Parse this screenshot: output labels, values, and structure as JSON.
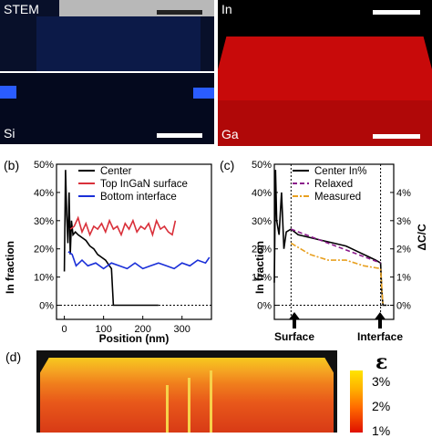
{
  "panels_top": {
    "stem": {
      "label": "STEM",
      "bg": "#0a1430"
    },
    "in": {
      "label": "In",
      "bg": "#000000"
    },
    "si": {
      "label": "Si",
      "bg": "#050a24"
    },
    "ga": {
      "label": "Ga",
      "bg": "#e01010"
    }
  },
  "panel_b": {
    "letter": "(b)",
    "ylabel": "In fraction",
    "xlabel": "Position (nm)",
    "legend": [
      "Center",
      "Top InGaN surface",
      "Bottom interface"
    ]
  },
  "panel_c": {
    "letter": "(c)",
    "ylabel_left": "In fraction",
    "ylabel_right": "ΔC/C",
    "legend": [
      "Center In%",
      "Relaxed",
      "Measured"
    ],
    "arrow_labels": [
      "Surface",
      "Interface"
    ]
  },
  "panel_d": {
    "letter": "(d)",
    "colorbar_symbol": "ε",
    "colorbar_ticks": [
      "3%",
      "2%",
      "1%"
    ]
  },
  "chart_data": [
    {
      "type": "line",
      "panel": "b",
      "xlabel": "Position (nm)",
      "ylabel": "In fraction",
      "xlim": [
        -20,
        375
      ],
      "ylim": [
        -5,
        50
      ],
      "xticks": [
        "0",
        "100",
        "200",
        "300"
      ],
      "yticks": [
        "0%",
        "10%",
        "20%",
        "30%",
        "40%",
        "50%"
      ],
      "colors": {
        "Center": "#000000",
        "Top InGaN surface": "#d9303a",
        "Bottom interface": "#1a2fd8"
      },
      "series": [
        {
          "name": "Center",
          "x": [
            0,
            3,
            6,
            9,
            12,
            15,
            18,
            22,
            28,
            35,
            45,
            55,
            65,
            75,
            85,
            95,
            105,
            115,
            120,
            125,
            130,
            150,
            180,
            210,
            240
          ],
          "y": [
            12,
            48,
            32,
            22,
            40,
            18,
            30,
            25,
            26,
            25,
            24,
            23,
            21,
            20,
            18,
            17,
            16,
            14,
            13,
            0,
            0,
            0,
            0,
            0,
            0
          ]
        },
        {
          "name": "Top InGaN surface",
          "x": [
            15,
            25,
            35,
            45,
            55,
            65,
            75,
            85,
            95,
            105,
            115,
            125,
            135,
            145,
            155,
            165,
            175,
            185,
            195,
            205,
            215,
            225,
            235,
            245,
            255,
            265,
            275,
            283
          ],
          "y": [
            27,
            28,
            31,
            26,
            29,
            25,
            28,
            27,
            29,
            26,
            30,
            27,
            28,
            25,
            29,
            27,
            30,
            26,
            28,
            27,
            29,
            25,
            30,
            27,
            28,
            26,
            25,
            30
          ]
        },
        {
          "name": "Bottom interface",
          "x": [
            10,
            20,
            30,
            45,
            60,
            80,
            100,
            120,
            140,
            160,
            180,
            200,
            220,
            240,
            260,
            280,
            300,
            320,
            340,
            360,
            370
          ],
          "y": [
            19,
            18,
            14,
            16,
            14,
            15,
            13,
            15,
            14,
            13,
            15,
            13,
            14,
            15,
            14,
            13,
            15,
            14,
            16,
            15,
            17
          ]
        }
      ]
    },
    {
      "type": "line",
      "panel": "c",
      "ylabel": "In fraction",
      "ylabel_right": "ΔC/C",
      "ylim": [
        -5,
        50
      ],
      "yticks_left": [
        "0%",
        "10%",
        "20%",
        "30%",
        "40%",
        "50%"
      ],
      "yticks_right": [
        "0%",
        "1%",
        "2%",
        "3%",
        "4%"
      ],
      "colors": {
        "Center In%": "#000000",
        "Relaxed": "#8b1a8b",
        "Measured": "#e8a020"
      },
      "series": [
        {
          "name": "Center In%",
          "x": [
            0.0,
            0.01,
            0.02,
            0.04,
            0.06,
            0.08,
            0.1,
            0.14,
            0.2,
            0.3,
            0.4,
            0.5,
            0.6,
            0.7,
            0.8,
            0.85,
            0.89,
            0.9,
            0.91,
            0.94
          ],
          "y": [
            8,
            48,
            30,
            25,
            40,
            20,
            26,
            27,
            25,
            24,
            23,
            22,
            21,
            19,
            17,
            16,
            15,
            5,
            0,
            0
          ]
        },
        {
          "name": "Relaxed",
          "x": [
            0.14,
            0.89
          ],
          "y": [
            27,
            15
          ]
        },
        {
          "name": "Measured",
          "x": [
            0.14,
            0.3,
            0.45,
            0.6,
            0.75,
            0.89,
            0.91
          ],
          "y": [
            22,
            18,
            16,
            16,
            14,
            13,
            0
          ]
        }
      ]
    }
  ]
}
